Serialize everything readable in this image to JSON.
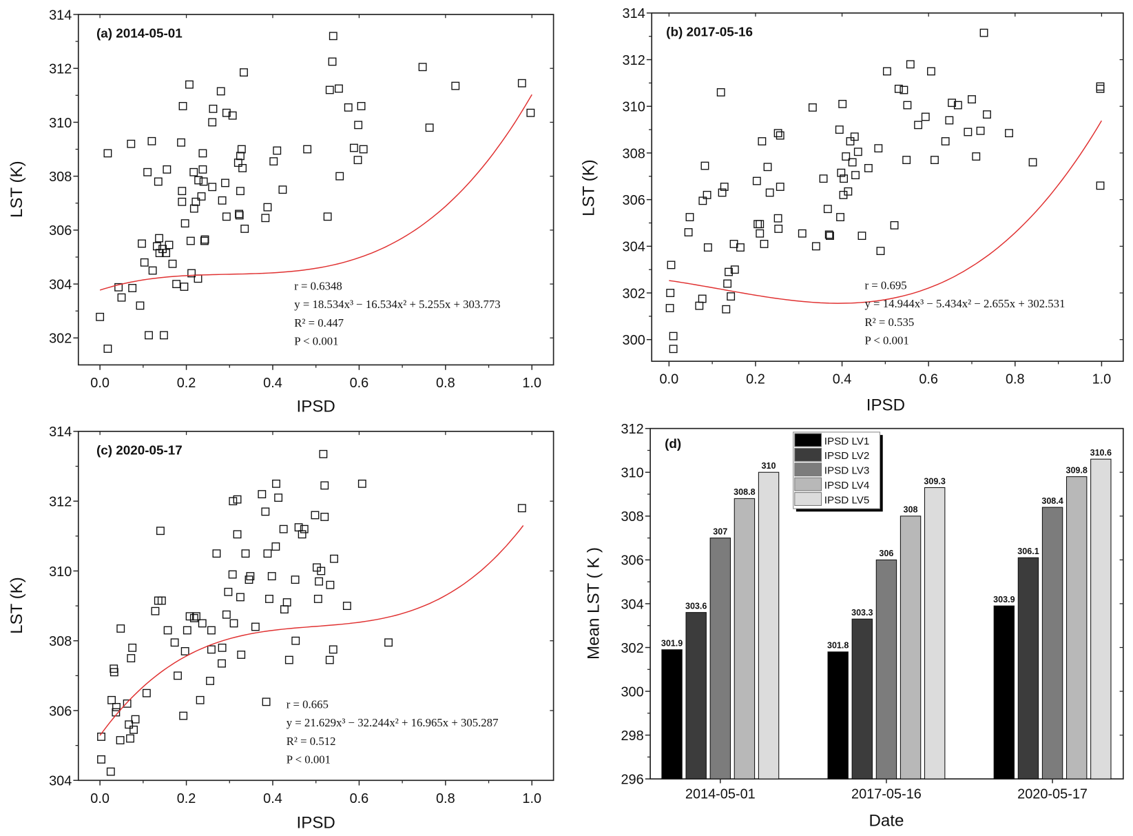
{
  "chart_data": [
    {
      "type": "scatter",
      "panel_label": "(a) 2014-05-01",
      "xlabel": "IPSD",
      "ylabel": "LST (K)",
      "xlim": [
        -0.05,
        1.05
      ],
      "ylim": [
        301,
        314
      ],
      "xticks": [
        0.0,
        0.2,
        0.4,
        0.6,
        0.8,
        1.0
      ],
      "xtick_labels": [
        "0.0",
        "0.2",
        "0.4",
        "0.6",
        "0.8",
        "1.0"
      ],
      "yticks": [
        302,
        304,
        306,
        308,
        310,
        312,
        314
      ],
      "ytick_labels": [
        "302",
        "304",
        "306",
        "308",
        "310",
        "312",
        "314"
      ],
      "fit": {
        "coeffs": [
          18.534,
          -16.534,
          5.255,
          303.773
        ],
        "x_range": [
          0,
          1
        ],
        "color": "#e03030"
      },
      "annotations": [
        "r = 0.6348",
        "y = 18.534x³ − 16.534x² + 5.255x + 303.773",
        "R² = 0.447",
        "P < 0.001"
      ],
      "points": [
        [
          0,
          302.78
        ],
        [
          0.018,
          301.6
        ],
        [
          0.018,
          308.85
        ],
        [
          0.043,
          303.88
        ],
        [
          0.05,
          303.5
        ],
        [
          0.072,
          309.2
        ],
        [
          0.075,
          303.85
        ],
        [
          0.093,
          303.2
        ],
        [
          0.097,
          305.5
        ],
        [
          0.103,
          304.8
        ],
        [
          0.11,
          308.15
        ],
        [
          0.113,
          302.1
        ],
        [
          0.12,
          309.3
        ],
        [
          0.122,
          304.5
        ],
        [
          0.132,
          305.4
        ],
        [
          0.135,
          307.8
        ],
        [
          0.137,
          305.7
        ],
        [
          0.138,
          305.15
        ],
        [
          0.145,
          305.3
        ],
        [
          0.148,
          302.1
        ],
        [
          0.153,
          305.15
        ],
        [
          0.155,
          308.25
        ],
        [
          0.16,
          305.45
        ],
        [
          0.168,
          304.75
        ],
        [
          0.177,
          304.0
        ],
        [
          0.188,
          309.25
        ],
        [
          0.19,
          307.45
        ],
        [
          0.19,
          307.05
        ],
        [
          0.192,
          310.6
        ],
        [
          0.195,
          303.9
        ],
        [
          0.197,
          306.25
        ],
        [
          0.207,
          311.4
        ],
        [
          0.21,
          305.6
        ],
        [
          0.212,
          304.4
        ],
        [
          0.217,
          308.15
        ],
        [
          0.218,
          306.8
        ],
        [
          0.222,
          307.05
        ],
        [
          0.227,
          304.2
        ],
        [
          0.228,
          307.85
        ],
        [
          0.235,
          307.25
        ],
        [
          0.238,
          308.85
        ],
        [
          0.238,
          308.25
        ],
        [
          0.24,
          307.8
        ],
        [
          0.242,
          305.6
        ],
        [
          0.243,
          305.65
        ],
        [
          0.26,
          307.6
        ],
        [
          0.26,
          310.0
        ],
        [
          0.262,
          310.5
        ],
        [
          0.28,
          311.15
        ],
        [
          0.283,
          307.1
        ],
        [
          0.29,
          307.75
        ],
        [
          0.293,
          310.35
        ],
        [
          0.293,
          306.5
        ],
        [
          0.307,
          310.25
        ],
        [
          0.32,
          308.5
        ],
        [
          0.322,
          306.6
        ],
        [
          0.323,
          306.55
        ],
        [
          0.325,
          308.75
        ],
        [
          0.325,
          307.45
        ],
        [
          0.328,
          309.0
        ],
        [
          0.33,
          308.3
        ],
        [
          0.333,
          311.85
        ],
        [
          0.335,
          306.05
        ],
        [
          0.383,
          306.45
        ],
        [
          0.388,
          306.85
        ],
        [
          0.402,
          308.55
        ],
        [
          0.41,
          308.95
        ],
        [
          0.423,
          307.5
        ],
        [
          0.48,
          309.0
        ],
        [
          0.527,
          306.5
        ],
        [
          0.532,
          311.2
        ],
        [
          0.538,
          312.25
        ],
        [
          0.54,
          313.2
        ],
        [
          0.553,
          311.25
        ],
        [
          0.555,
          308.0
        ],
        [
          0.575,
          310.55
        ],
        [
          0.588,
          309.05
        ],
        [
          0.597,
          308.6
        ],
        [
          0.598,
          309.9
        ],
        [
          0.605,
          310.6
        ],
        [
          0.61,
          309.0
        ],
        [
          0.747,
          312.05
        ],
        [
          0.763,
          309.8
        ],
        [
          0.823,
          311.35
        ],
        [
          0.977,
          311.45
        ],
        [
          0.997,
          310.35
        ]
      ]
    },
    {
      "type": "scatter",
      "panel_label": "(b) 2017-05-16",
      "xlabel": "IPSD",
      "ylabel": "LST (K)",
      "xlim": [
        -0.04,
        1.05
      ],
      "ylim": [
        299.07,
        314
      ],
      "xticks": [
        0.0,
        0.2,
        0.4,
        0.6,
        0.8,
        1.0
      ],
      "xtick_labels": [
        "0.0",
        "0.2",
        "0.4",
        "0.6",
        "0.8",
        "1.0"
      ],
      "yticks": [
        300,
        302,
        304,
        306,
        308,
        310,
        312,
        314
      ],
      "ytick_labels": [
        "300",
        "302",
        "304",
        "306",
        "308",
        "310",
        "312",
        "314"
      ],
      "fit": {
        "coeffs": [
          14.944,
          -5.434,
          -2.655,
          302.531
        ],
        "x_range": [
          0,
          1
        ],
        "color": "#e03030"
      },
      "annotations": [
        "r = 0.695",
        "y = 14.944x³ − 5.434x² − 2.655x + 302.531",
        "R² = 0.535",
        "P < 0.001"
      ],
      "points": [
        [
          0.003,
          302.0
        ],
        [
          0.005,
          303.2
        ],
        [
          0.002,
          301.35
        ],
        [
          0.01,
          300.15
        ],
        [
          0.01,
          299.6
        ],
        [
          0.045,
          304.6
        ],
        [
          0.048,
          305.25
        ],
        [
          0.07,
          301.45
        ],
        [
          0.077,
          301.75
        ],
        [
          0.078,
          305.95
        ],
        [
          0.083,
          307.45
        ],
        [
          0.088,
          306.2
        ],
        [
          0.09,
          303.95
        ],
        [
          0.12,
          310.6
        ],
        [
          0.123,
          306.3
        ],
        [
          0.128,
          306.55
        ],
        [
          0.132,
          301.3
        ],
        [
          0.135,
          302.4
        ],
        [
          0.138,
          302.9
        ],
        [
          0.143,
          301.85
        ],
        [
          0.15,
          304.1
        ],
        [
          0.152,
          303.0
        ],
        [
          0.165,
          303.95
        ],
        [
          0.203,
          306.8
        ],
        [
          0.205,
          304.95
        ],
        [
          0.21,
          304.55
        ],
        [
          0.21,
          304.95
        ],
        [
          0.215,
          308.5
        ],
        [
          0.22,
          304.1
        ],
        [
          0.228,
          307.4
        ],
        [
          0.233,
          306.3
        ],
        [
          0.252,
          308.85
        ],
        [
          0.252,
          305.2
        ],
        [
          0.253,
          304.75
        ],
        [
          0.257,
          308.75
        ],
        [
          0.257,
          306.55
        ],
        [
          0.308,
          304.55
        ],
        [
          0.332,
          309.95
        ],
        [
          0.34,
          304.0
        ],
        [
          0.357,
          306.9
        ],
        [
          0.367,
          305.6
        ],
        [
          0.37,
          304.5
        ],
        [
          0.372,
          304.45
        ],
        [
          0.394,
          309.0
        ],
        [
          0.396,
          305.25
        ],
        [
          0.398,
          307.15
        ],
        [
          0.401,
          310.1
        ],
        [
          0.403,
          306.2
        ],
        [
          0.404,
          306.9
        ],
        [
          0.409,
          307.85
        ],
        [
          0.414,
          306.35
        ],
        [
          0.419,
          308.5
        ],
        [
          0.424,
          307.6
        ],
        [
          0.429,
          308.7
        ],
        [
          0.431,
          307.05
        ],
        [
          0.437,
          308.05
        ],
        [
          0.446,
          304.45
        ],
        [
          0.461,
          307.35
        ],
        [
          0.484,
          308.2
        ],
        [
          0.489,
          303.8
        ],
        [
          0.504,
          311.5
        ],
        [
          0.521,
          304.9
        ],
        [
          0.531,
          310.75
        ],
        [
          0.543,
          310.7
        ],
        [
          0.549,
          307.7
        ],
        [
          0.551,
          310.05
        ],
        [
          0.558,
          311.8
        ],
        [
          0.576,
          309.2
        ],
        [
          0.593,
          309.55
        ],
        [
          0.606,
          311.5
        ],
        [
          0.614,
          307.7
        ],
        [
          0.639,
          308.5
        ],
        [
          0.648,
          309.4
        ],
        [
          0.654,
          310.15
        ],
        [
          0.668,
          310.05
        ],
        [
          0.691,
          308.9
        ],
        [
          0.7,
          310.3
        ],
        [
          0.71,
          307.85
        ],
        [
          0.72,
          308.95
        ],
        [
          0.728,
          313.15
        ],
        [
          0.735,
          309.65
        ],
        [
          0.786,
          308.85
        ],
        [
          0.841,
          307.6
        ],
        [
          0.997,
          310.85
        ],
        [
          0.997,
          310.75
        ],
        [
          0.997,
          306.6
        ]
      ]
    },
    {
      "type": "scatter",
      "panel_label": "(c) 2020-05-17",
      "xlabel": "IPSD",
      "ylabel": "LST (K)",
      "xlim": [
        -0.05,
        1.05
      ],
      "ylim": [
        304,
        314
      ],
      "xticks": [
        0.0,
        0.2,
        0.4,
        0.6,
        0.8,
        1.0
      ],
      "xtick_labels": [
        "0.0",
        "0.2",
        "0.4",
        "0.6",
        "0.8",
        "1.0"
      ],
      "yticks": [
        304,
        306,
        308,
        310,
        312,
        314
      ],
      "ytick_labels": [
        "304",
        "306",
        "308",
        "310",
        "312",
        "314"
      ],
      "fit": {
        "coeffs": [
          21.629,
          -32.244,
          16.965,
          305.287
        ],
        "x_range": [
          0,
          0.98
        ],
        "color": "#e03030"
      },
      "annotations": [
        "r = 0.665",
        "y = 21.629x³ − 32.244x² + 16.965x + 305.287",
        "R² = 0.512",
        "P < 0.001"
      ],
      "points": [
        [
          0.003,
          305.25
        ],
        [
          0.003,
          304.6
        ],
        [
          0.025,
          304.25
        ],
        [
          0.027,
          306.3
        ],
        [
          0.032,
          307.2
        ],
        [
          0.033,
          307.1
        ],
        [
          0.037,
          305.95
        ],
        [
          0.038,
          306.1
        ],
        [
          0.047,
          305.15
        ],
        [
          0.048,
          308.35
        ],
        [
          0.063,
          306.2
        ],
        [
          0.067,
          305.6
        ],
        [
          0.07,
          305.2
        ],
        [
          0.072,
          307.5
        ],
        [
          0.075,
          307.8
        ],
        [
          0.078,
          305.45
        ],
        [
          0.082,
          305.75
        ],
        [
          0.108,
          306.5
        ],
        [
          0.128,
          308.85
        ],
        [
          0.135,
          309.15
        ],
        [
          0.14,
          311.15
        ],
        [
          0.143,
          309.15
        ],
        [
          0.157,
          308.3
        ],
        [
          0.173,
          307.95
        ],
        [
          0.18,
          307.0
        ],
        [
          0.193,
          305.85
        ],
        [
          0.197,
          307.7
        ],
        [
          0.202,
          308.3
        ],
        [
          0.208,
          308.7
        ],
        [
          0.218,
          308.65
        ],
        [
          0.223,
          308.7
        ],
        [
          0.232,
          306.3
        ],
        [
          0.237,
          308.5
        ],
        [
          0.255,
          306.85
        ],
        [
          0.258,
          307.75
        ],
        [
          0.258,
          308.3
        ],
        [
          0.27,
          310.5
        ],
        [
          0.282,
          307.35
        ],
        [
          0.283,
          307.8
        ],
        [
          0.293,
          308.75
        ],
        [
          0.297,
          309.4
        ],
        [
          0.307,
          309.9
        ],
        [
          0.308,
          312.0
        ],
        [
          0.31,
          308.5
        ],
        [
          0.318,
          312.05
        ],
        [
          0.318,
          311.05
        ],
        [
          0.325,
          309.25
        ],
        [
          0.327,
          307.6
        ],
        [
          0.337,
          310.5
        ],
        [
          0.345,
          309.75
        ],
        [
          0.348,
          309.85
        ],
        [
          0.36,
          308.4
        ],
        [
          0.375,
          312.2
        ],
        [
          0.383,
          311.7
        ],
        [
          0.385,
          306.25
        ],
        [
          0.388,
          310.5
        ],
        [
          0.392,
          309.2
        ],
        [
          0.398,
          309.85
        ],
        [
          0.407,
          310.7
        ],
        [
          0.408,
          312.5
        ],
        [
          0.413,
          312.1
        ],
        [
          0.425,
          311.2
        ],
        [
          0.427,
          308.9
        ],
        [
          0.433,
          309.1
        ],
        [
          0.438,
          307.45
        ],
        [
          0.452,
          309.75
        ],
        [
          0.453,
          308.0
        ],
        [
          0.46,
          311.25
        ],
        [
          0.468,
          311.05
        ],
        [
          0.473,
          311.2
        ],
        [
          0.498,
          311.6
        ],
        [
          0.502,
          310.1
        ],
        [
          0.505,
          309.2
        ],
        [
          0.507,
          309.7
        ],
        [
          0.512,
          310.0
        ],
        [
          0.517,
          313.35
        ],
        [
          0.52,
          312.45
        ],
        [
          0.52,
          311.55
        ],
        [
          0.532,
          307.45
        ],
        [
          0.533,
          309.6
        ],
        [
          0.54,
          307.75
        ],
        [
          0.542,
          310.35
        ],
        [
          0.572,
          309.0
        ],
        [
          0.607,
          312.5
        ],
        [
          0.668,
          307.95
        ],
        [
          0.977,
          311.8
        ]
      ]
    },
    {
      "type": "bar",
      "panel_label": "(d)",
      "xlabel": "Date",
      "ylabel": "Mean LST ( K )",
      "ylim": [
        296,
        312
      ],
      "yticks": [
        296,
        298,
        300,
        302,
        304,
        306,
        308,
        310,
        312
      ],
      "ytick_labels": [
        "296",
        "298",
        "300",
        "302",
        "304",
        "306",
        "308",
        "310",
        "312"
      ],
      "categories": [
        "2014-05-01",
        "2017-05-16",
        "2020-05-17"
      ],
      "legend_position": "top-center",
      "series": [
        {
          "name": "IPSD LV1",
          "color": "#000000",
          "values": [
            301.9,
            301.8,
            303.9
          ],
          "labels": [
            "301.9",
            "301.8",
            "303.9"
          ]
        },
        {
          "name": "IPSD LV2",
          "color": "#3c3c3c",
          "values": [
            303.6,
            303.3,
            306.1
          ],
          "labels": [
            "303.6",
            "303.3",
            "306.1"
          ]
        },
        {
          "name": "IPSD LV3",
          "color": "#7c7c7c",
          "values": [
            307,
            306,
            308.4
          ],
          "labels": [
            "307",
            "306",
            "308.4"
          ]
        },
        {
          "name": "IPSD LV4",
          "color": "#b8b8b8",
          "values": [
            308.8,
            308,
            309.8
          ],
          "labels": [
            "308.8",
            "308",
            "309.8"
          ]
        },
        {
          "name": "IPSD LV5",
          "color": "#dcdcdc",
          "values": [
            310,
            309.3,
            310.6
          ],
          "labels": [
            "310",
            "309.3",
            "310.6"
          ]
        }
      ]
    }
  ]
}
